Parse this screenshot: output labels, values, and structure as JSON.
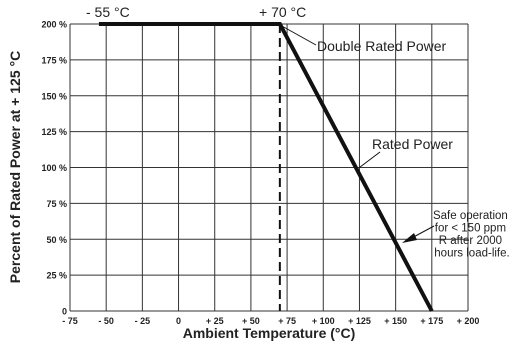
{
  "chart_data": {
    "type": "line",
    "xlabel": "Ambient Temperature (°C)",
    "ylabel": "Percent of Rated Power at + 125 °C",
    "xlim": [
      -75,
      200
    ],
    "ylim": [
      0,
      200
    ],
    "x_ticks": [
      {
        "value": -75,
        "label": "- 75"
      },
      {
        "value": -50,
        "label": "- 50"
      },
      {
        "value": -25,
        "label": "- 25"
      },
      {
        "value": 0,
        "label": "0"
      },
      {
        "value": 25,
        "label": "+ 25"
      },
      {
        "value": 50,
        "label": "+ 50"
      },
      {
        "value": 75,
        "label": "+ 75"
      },
      {
        "value": 100,
        "label": "+ 100"
      },
      {
        "value": 125,
        "label": "+ 125"
      },
      {
        "value": 150,
        "label": "+ 150"
      },
      {
        "value": 175,
        "label": "+ 175"
      },
      {
        "value": 200,
        "label": "+ 200"
      }
    ],
    "y_ticks": [
      {
        "value": 0,
        "label": "0"
      },
      {
        "value": 25,
        "label": "25 %"
      },
      {
        "value": 50,
        "label": "50 %"
      },
      {
        "value": 75,
        "label": "75 %"
      },
      {
        "value": 100,
        "label": "100 %"
      },
      {
        "value": 125,
        "label": "125 %"
      },
      {
        "value": 150,
        "label": "150 %"
      },
      {
        "value": 175,
        "label": "175 %"
      },
      {
        "value": 200,
        "label": "200 %"
      }
    ],
    "grid": true,
    "series": [
      {
        "x": [
          -55,
          70,
          175
        ],
        "y": [
          200,
          200,
          0
        ],
        "color": "#111111"
      }
    ],
    "reference_line": {
      "x": 70,
      "style": "dashed"
    },
    "annotations": {
      "min_temp": "- 55 °C",
      "knee_temp": "+ 70 °C",
      "double_rated": "Double Rated Power",
      "rated": "Rated Power",
      "safe_lines": [
        "Safe operation",
        "for < 150 ppm",
        "R after 2000",
        "hours load-life."
      ]
    }
  }
}
